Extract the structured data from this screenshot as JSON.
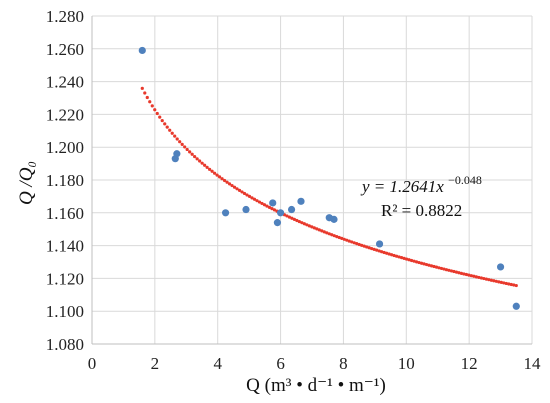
{
  "chart_data": {
    "type": "scatter",
    "title": "",
    "xlabel": "Q (m³ • d⁻¹ • m⁻¹)",
    "ylabel": "Q /Q₀",
    "xlim": [
      0,
      14
    ],
    "ylim": [
      1.08,
      1.28
    ],
    "xticks": [
      0,
      2,
      4,
      6,
      8,
      10,
      12,
      14
    ],
    "xtick_labels": [
      "0",
      "2",
      "4",
      "6",
      "8",
      "10",
      "12",
      "14"
    ],
    "yticks": [
      1.08,
      1.1,
      1.12,
      1.14,
      1.16,
      1.18,
      1.2,
      1.22,
      1.24,
      1.26,
      1.28
    ],
    "ytick_labels": [
      "1.080",
      "1.100",
      "1.120",
      "1.140",
      "1.160",
      "1.180",
      "1.200",
      "1.220",
      "1.240",
      "1.260",
      "1.280"
    ],
    "grid": true,
    "legend": "none",
    "series": [
      {
        "color": "#4f81bd",
        "points": [
          {
            "x": 1.6,
            "y": 1.259
          },
          {
            "x": 2.65,
            "y": 1.193
          },
          {
            "x": 2.7,
            "y": 1.196
          },
          {
            "x": 4.25,
            "y": 1.16
          },
          {
            "x": 4.9,
            "y": 1.162
          },
          {
            "x": 5.75,
            "y": 1.166
          },
          {
            "x": 5.9,
            "y": 1.154
          },
          {
            "x": 6.0,
            "y": 1.16
          },
          {
            "x": 6.35,
            "y": 1.162
          },
          {
            "x": 6.65,
            "y": 1.167
          },
          {
            "x": 7.55,
            "y": 1.157
          },
          {
            "x": 7.7,
            "y": 1.156
          },
          {
            "x": 9.15,
            "y": 1.141
          },
          {
            "x": 13.0,
            "y": 1.127
          },
          {
            "x": 13.5,
            "y": 1.103
          }
        ]
      }
    ],
    "trendline": {
      "type": "power",
      "a": 1.2641,
      "b": -0.048,
      "x_range": [
        1.6,
        13.5
      ],
      "color": "#e8392c"
    },
    "annotation": {
      "equation_prefix": "y = 1.2641x",
      "equation_exponent": "−0.048",
      "r_squared": "R² = 0.8822"
    }
  }
}
